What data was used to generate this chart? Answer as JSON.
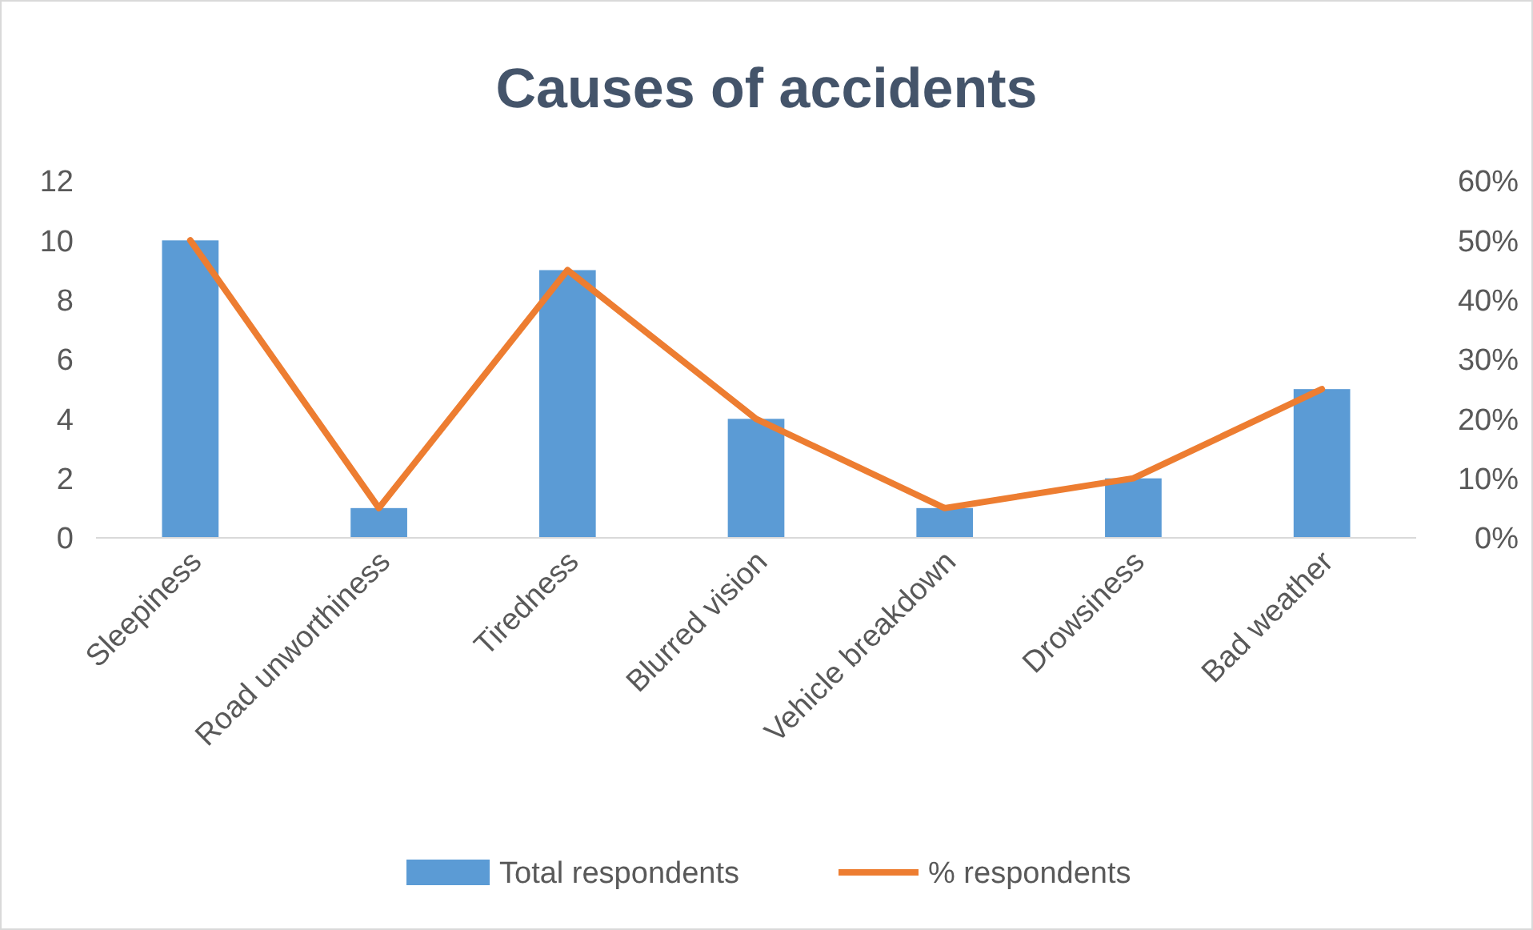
{
  "chart_data": {
    "type": "bar",
    "title": "Causes of accidents",
    "categories": [
      "Sleepiness",
      "Road unworthiness",
      "Tiredness",
      "Blurred vision",
      "Vehicle breakdown",
      "Drowsiness",
      "Bad weather"
    ],
    "series": [
      {
        "name": "Total respondents",
        "color": "#5b9bd5",
        "values": [
          10,
          1,
          9,
          4,
          1,
          2,
          5
        ]
      },
      {
        "name": "% respondents",
        "type": "line",
        "axis": "y2",
        "color": "#ed7d31",
        "values": [
          50,
          5,
          45,
          20,
          5,
          10,
          25
        ]
      }
    ],
    "ylim": [
      0,
      12
    ],
    "yticks": [
      0,
      2,
      4,
      6,
      8,
      10,
      12
    ],
    "y2lim": [
      0,
      60
    ],
    "y2ticks": [
      {
        "value": 0,
        "label": "0%"
      },
      {
        "value": 10,
        "label": "10%"
      },
      {
        "value": 20,
        "label": "20%"
      },
      {
        "value": 30,
        "label": "30%"
      },
      {
        "value": 40,
        "label": "40%"
      },
      {
        "value": 50,
        "label": "50%"
      },
      {
        "value": 60,
        "label": "60%"
      }
    ],
    "legend": "bottom",
    "grid": false
  }
}
